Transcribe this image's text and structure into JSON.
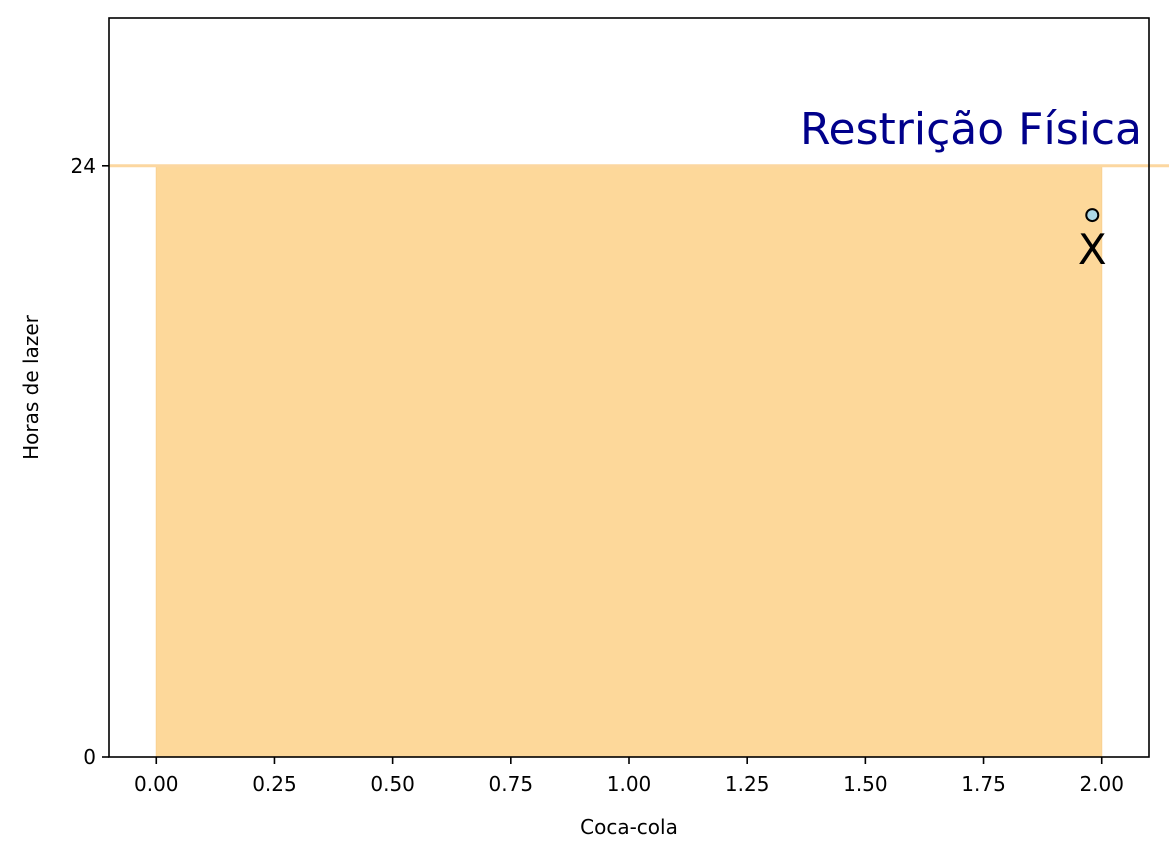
{
  "chart_data": {
    "type": "area",
    "xlabel": "Coca-cola",
    "ylabel": "Horas de lazer",
    "xlim": [
      -0.1,
      2.1
    ],
    "ylim": [
      0,
      30
    ],
    "x_ticks": [
      0.0,
      0.25,
      0.5,
      0.75,
      1.0,
      1.25,
      1.5,
      1.75,
      2.0
    ],
    "x_tick_labels": [
      "0.00",
      "0.25",
      "0.50",
      "0.75",
      "1.00",
      "1.25",
      "1.50",
      "1.75",
      "2.00"
    ],
    "y_ticks": [
      0,
      24
    ],
    "y_tick_labels": [
      "0",
      "24"
    ],
    "grid": false,
    "series": [
      {
        "kind": "filled-region",
        "x": [
          0,
          2
        ],
        "y_top": 24,
        "y_bottom": 0,
        "color": "#fdd89a"
      },
      {
        "kind": "horizontal-line",
        "y": 24,
        "color": "#fcd7a0"
      },
      {
        "kind": "point",
        "x": 1.98,
        "y": 22,
        "color": "#add8e6",
        "label": "X"
      }
    ],
    "annotations": [
      {
        "text": "Restrição Física",
        "x": 2.1,
        "y": 24,
        "color": "#00008b"
      }
    ]
  }
}
